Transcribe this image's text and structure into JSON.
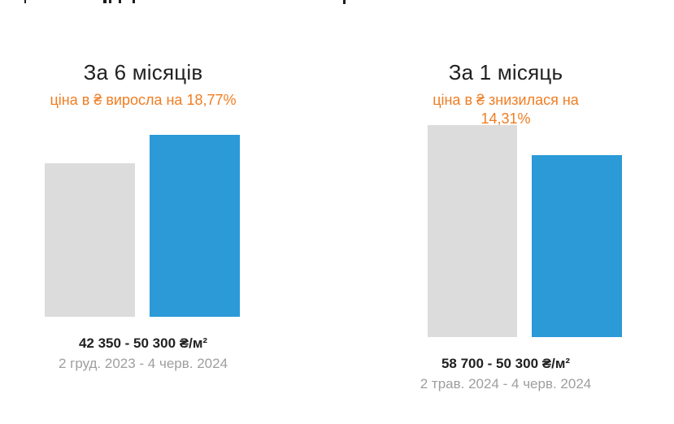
{
  "page": {
    "background": "#ffffff",
    "note": "price dynamics widget with two comparison bar charts"
  },
  "theme": {
    "accent_orange": "#f07d22",
    "bar_previous_color": "#dcdcdc",
    "bar_current_color": "#2b9ad7",
    "title_color": "#212121",
    "muted_color": "#9e9e9e"
  },
  "chart_data": [
    {
      "type": "bar",
      "title": "За 6 місяців",
      "subtitle_lines": [
        "ціна в ₴ виросла на 18,77%"
      ],
      "change_direction": "up",
      "change_percent": "18,77%",
      "currency": "₴",
      "categories": [
        "2 груд. 2023",
        "4 черв. 2024"
      ],
      "values": [
        42350,
        50300
      ],
      "unit": "₴/м²",
      "range_label": "42 350 - 50 300 ₴/м²",
      "period_label": "2 груд. 2023 - 4 черв. 2024",
      "bar_roles": [
        "previous-price",
        "current-price"
      ],
      "axes_visible": false,
      "ylim": [
        0,
        58700
      ]
    },
    {
      "type": "bar",
      "title": "За 1 місяць",
      "subtitle_lines": [
        "ціна в ₴ знизилася на",
        "14,31%"
      ],
      "change_direction": "down",
      "change_percent": "14,31%",
      "currency": "₴",
      "categories": [
        "2 трав. 2024",
        "4 черв. 2024"
      ],
      "values": [
        58700,
        50300
      ],
      "unit": "₴/м²",
      "range_label": "58 700 - 50 300 ₴/м²",
      "period_label": "2 трав. 2024 - 4 черв. 2024",
      "bar_roles": [
        "previous-price",
        "current-price"
      ],
      "axes_visible": false,
      "ylim": [
        0,
        58700
      ]
    }
  ]
}
